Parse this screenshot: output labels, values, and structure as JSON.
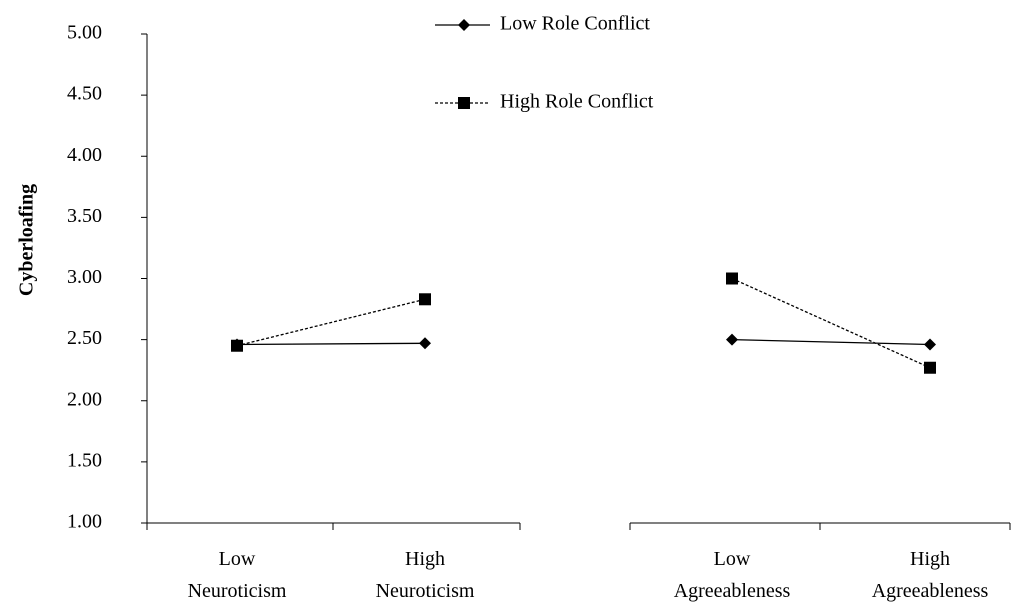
{
  "chart_data": {
    "type": "line",
    "y_label": "Cyberloafing",
    "categories": [
      "Low Neuroticism",
      "High Neuroticism",
      null,
      "Low Agreeableness",
      "High Agreeableness"
    ],
    "series": [
      {
        "name": "Low Role Conflict",
        "color": "#000000",
        "marker": "diamond",
        "dash": false,
        "values": [
          2.46,
          2.47,
          null,
          2.5,
          2.46
        ]
      },
      {
        "name": "High Role Conflict",
        "color": "#000000",
        "marker": "square",
        "dash": true,
        "values": [
          2.45,
          2.83,
          null,
          3.0,
          2.27
        ]
      }
    ],
    "ylim": [
      1,
      5
    ],
    "yticks": [
      {
        "value": 1,
        "label": "1.00"
      },
      {
        "value": 1.5,
        "label": "1.50"
      },
      {
        "value": 2,
        "label": "2.00"
      },
      {
        "value": 2.5,
        "label": "2.50"
      },
      {
        "value": 3,
        "label": "3.00"
      },
      {
        "value": 3.5,
        "label": "3.50"
      },
      {
        "value": 4,
        "label": "4.00"
      },
      {
        "value": 4.5,
        "label": "4.50"
      },
      {
        "value": 5,
        "label": "5.00"
      }
    ],
    "legend": "top",
    "grid": false
  }
}
